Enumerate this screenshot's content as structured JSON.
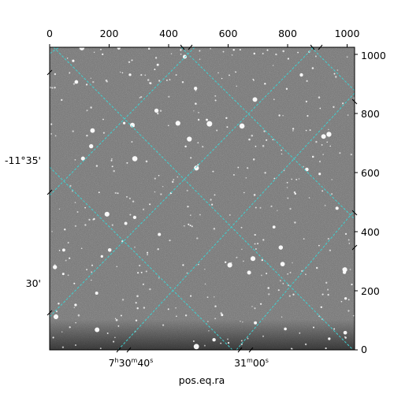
{
  "colors": {
    "grid": "#3fd1d1",
    "frame": "#000000",
    "sky": "#6e6e6e"
  },
  "top_axis": {
    "ticks": [
      "0",
      "200",
      "400",
      "600",
      "800",
      "1000"
    ]
  },
  "right_axis": {
    "ticks": [
      "0",
      "200",
      "400",
      "600",
      "800",
      "1000"
    ]
  },
  "left_axis": {
    "ticks": [
      "-11°35'",
      "30'"
    ]
  },
  "bottom_axis": {
    "ticks": [
      {
        "main": "7",
        "s1": "h",
        "mid": "30",
        "s2": "m",
        "end": "40",
        "s3": "s"
      },
      {
        "main": "31",
        "s1": "m",
        "mid": "00",
        "s2": "s",
        "end": "",
        "s3": ""
      }
    ],
    "label": "pos.eq.ra"
  }
}
